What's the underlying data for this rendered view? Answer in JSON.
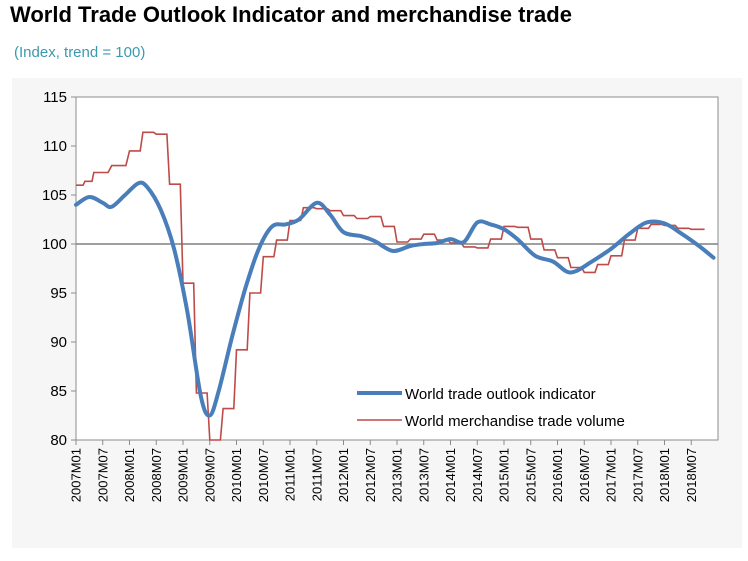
{
  "chart_data": {
    "type": "line",
    "title": "World Trade Outlook Indicator and merchandise trade",
    "subtitle": "(Index, trend = 100)",
    "ylim": [
      80,
      115
    ],
    "y_ticks": [
      "115",
      "110",
      "105",
      "100",
      "95",
      "90",
      "85",
      "80"
    ],
    "x_range": [
      "2007M01",
      "2018M12"
    ],
    "x_tick_labels": [
      "2007M01",
      "2007M07",
      "2008M01",
      "2008M07",
      "2009M01",
      "2009M07",
      "2010M01",
      "2010M07",
      "2011M01",
      "2011M07",
      "2012M01",
      "2012M07",
      "2013M01",
      "2013M07",
      "2014M01",
      "2014M07",
      "2015M01",
      "2015M07",
      "2016M01",
      "2016M07",
      "2017M01",
      "2017M07",
      "2018M01",
      "2018M07"
    ],
    "reference_line": 100,
    "grid": false,
    "legend_position": "bottom-right",
    "colors": {
      "indicator": "#4a7ebb",
      "volume": "#be4b48",
      "reference": "#808080"
    },
    "series": [
      {
        "name": "World trade outlook indicator",
        "style": "smooth",
        "points": [
          [
            "2007M01",
            104.0
          ],
          [
            "2007M04",
            104.8
          ],
          [
            "2007M07",
            104.2
          ],
          [
            "2007M09",
            103.8
          ],
          [
            "2007M12",
            105.0
          ],
          [
            "2008M03",
            106.2
          ],
          [
            "2008M05",
            105.8
          ],
          [
            "2008M08",
            103.5
          ],
          [
            "2008M11",
            99.5
          ],
          [
            "2009M02",
            93.0
          ],
          [
            "2009M05",
            84.5
          ],
          [
            "2009M07",
            82.5
          ],
          [
            "2009M09",
            85.0
          ],
          [
            "2009M12",
            90.5
          ],
          [
            "2010M03",
            95.5
          ],
          [
            "2010M06",
            99.5
          ],
          [
            "2010M09",
            101.8
          ],
          [
            "2010M12",
            102.0
          ],
          [
            "2011M03",
            102.5
          ],
          [
            "2011M07",
            104.2
          ],
          [
            "2011M10",
            103.0
          ],
          [
            "2012M01",
            101.2
          ],
          [
            "2012M05",
            100.8
          ],
          [
            "2012M08",
            100.3
          ],
          [
            "2012M12",
            99.3
          ],
          [
            "2013M04",
            99.8
          ],
          [
            "2013M07",
            100.0
          ],
          [
            "2013M10",
            100.1
          ],
          [
            "2014M01",
            100.5
          ],
          [
            "2014M04",
            100.2
          ],
          [
            "2014M07",
            102.2
          ],
          [
            "2014M10",
            102.0
          ],
          [
            "2015M01",
            101.5
          ],
          [
            "2015M04",
            100.5
          ],
          [
            "2015M08",
            98.8
          ],
          [
            "2015M12",
            98.2
          ],
          [
            "2016M03",
            97.2
          ],
          [
            "2016M05",
            97.2
          ],
          [
            "2016M08",
            98.0
          ],
          [
            "2017M01",
            99.5
          ],
          [
            "2017M05",
            101.0
          ],
          [
            "2017M09",
            102.2
          ],
          [
            "2018M01",
            102.1
          ],
          [
            "2018M05",
            101.0
          ],
          [
            "2018M09",
            99.7
          ],
          [
            "2018M12",
            98.6
          ]
        ]
      },
      {
        "name": "World merchandise trade volume",
        "style": "step",
        "points": [
          [
            "2007M01",
            106.0
          ],
          [
            "2007M03",
            106.4
          ],
          [
            "2007M05",
            107.3
          ],
          [
            "2007M09",
            108.0
          ],
          [
            "2008M01",
            109.5
          ],
          [
            "2008M04",
            111.4
          ],
          [
            "2008M07",
            111.2
          ],
          [
            "2008M10",
            106.1
          ],
          [
            "2009M01",
            96.0
          ],
          [
            "2009M04",
            84.8
          ],
          [
            "2009M07",
            80.0
          ],
          [
            "2009M10",
            83.2
          ],
          [
            "2010M01",
            89.2
          ],
          [
            "2010M04",
            95.0
          ],
          [
            "2010M07",
            98.7
          ],
          [
            "2010M10",
            100.4
          ],
          [
            "2011M01",
            102.4
          ],
          [
            "2011M04",
            103.7
          ],
          [
            "2011M07",
            103.6
          ],
          [
            "2011M10",
            103.4
          ],
          [
            "2012M01",
            102.9
          ],
          [
            "2012M04",
            102.6
          ],
          [
            "2012M07",
            102.8
          ],
          [
            "2012M10",
            101.8
          ],
          [
            "2013M01",
            100.2
          ],
          [
            "2013M04",
            100.5
          ],
          [
            "2013M07",
            101.0
          ],
          [
            "2013M10",
            100.4
          ],
          [
            "2014M01",
            100.1
          ],
          [
            "2014M04",
            99.7
          ],
          [
            "2014M07",
            99.6
          ],
          [
            "2014M10",
            100.5
          ],
          [
            "2015M01",
            101.8
          ],
          [
            "2015M04",
            101.7
          ],
          [
            "2015M07",
            100.5
          ],
          [
            "2015M10",
            99.4
          ],
          [
            "2016M01",
            98.6
          ],
          [
            "2016M04",
            97.6
          ],
          [
            "2016M07",
            97.1
          ],
          [
            "2016M10",
            97.9
          ],
          [
            "2017M01",
            98.8
          ],
          [
            "2017M04",
            100.4
          ],
          [
            "2017M07",
            101.6
          ],
          [
            "2017M10",
            102.0
          ],
          [
            "2018M01",
            101.9
          ],
          [
            "2018M04",
            101.6
          ],
          [
            "2018M07",
            101.5
          ],
          [
            "2018M10",
            101.5
          ]
        ]
      }
    ]
  }
}
